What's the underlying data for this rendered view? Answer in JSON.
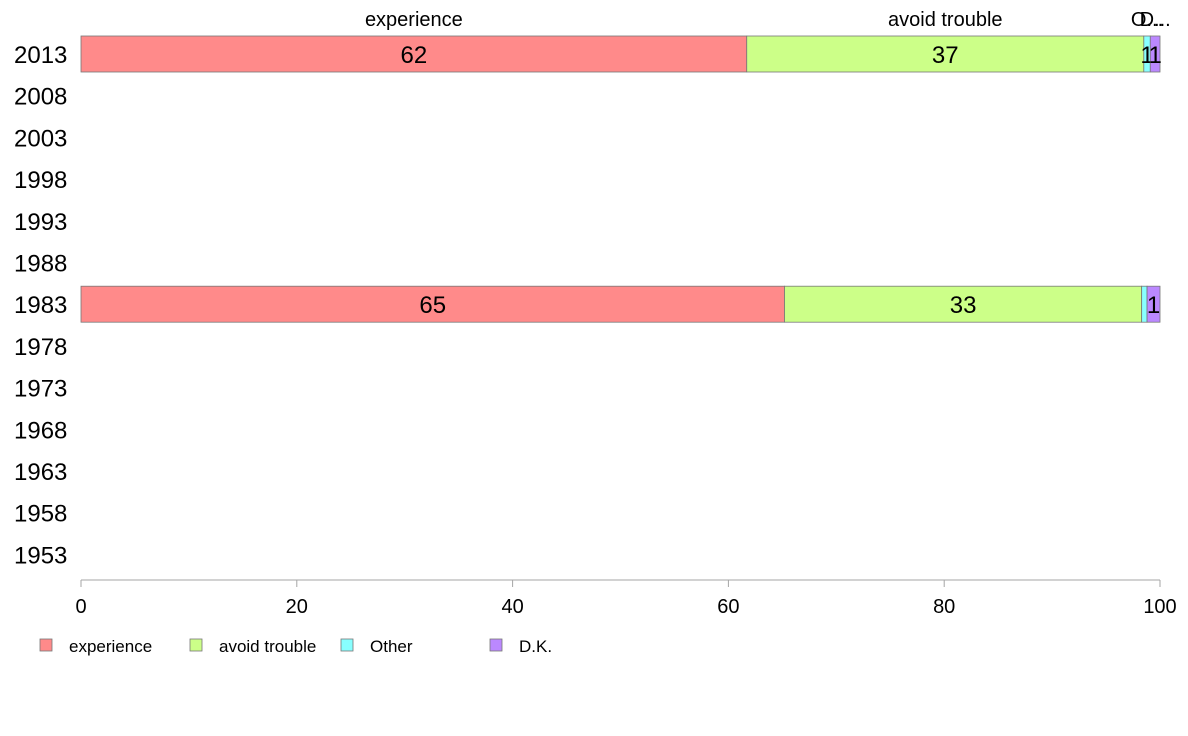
{
  "chart_data": {
    "type": "bar",
    "orientation": "horizontal",
    "stacked": true,
    "categories": [
      "2013",
      "2008",
      "2003",
      "1998",
      "1993",
      "1988",
      "1983",
      "1978",
      "1973",
      "1968",
      "1963",
      "1958",
      "1953"
    ],
    "series": [
      {
        "name": "experience",
        "color": "#ff8a8a",
        "values": [
          61.7,
          null,
          null,
          null,
          null,
          null,
          65.2,
          null,
          null,
          null,
          null,
          null,
          null
        ]
      },
      {
        "name": "avoid trouble",
        "color": "#ccff88",
        "values": [
          36.8,
          null,
          null,
          null,
          null,
          null,
          33.1,
          null,
          null,
          null,
          null,
          null,
          null
        ]
      },
      {
        "name": "Other",
        "color": "#88ffff",
        "values": [
          0.6,
          null,
          null,
          null,
          null,
          null,
          0.5,
          null,
          null,
          null,
          null,
          null,
          null
        ]
      },
      {
        "name": "D.K.",
        "color": "#bb88ff",
        "values": [
          0.9,
          null,
          null,
          null,
          null,
          null,
          1.2,
          null,
          null,
          null,
          null,
          null,
          null
        ]
      }
    ],
    "data_labels": [
      [
        "62",
        "37",
        "1",
        "1"
      ],
      [],
      [],
      [],
      [],
      [],
      [
        "65",
        "33",
        "",
        "1"
      ],
      [],
      [],
      [],
      [],
      [],
      []
    ],
    "top_labels": [
      "experience",
      "avoid trouble",
      "O...",
      "D..."
    ],
    "xticks": [
      "0",
      "20",
      "40",
      "60",
      "80",
      "100"
    ],
    "xlim": [
      0,
      100
    ],
    "title": "",
    "xlabel": "",
    "ylabel": "",
    "grid": false,
    "legend": {
      "position": "bottom-left",
      "items": [
        "experience",
        "avoid trouble",
        "Other",
        "D.K."
      ]
    }
  }
}
